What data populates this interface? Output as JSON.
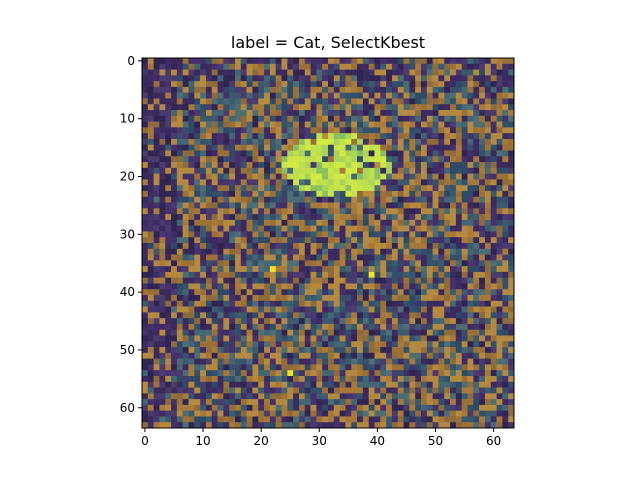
{
  "chart_data": {
    "type": "heatmap",
    "title": "label = Cat, SelectKbest",
    "xlabel": "",
    "ylabel": "",
    "grid_size": [
      64,
      64
    ],
    "xlim": [
      -0.5,
      63.5
    ],
    "ylim": [
      63.5,
      -0.5
    ],
    "xticks": [
      0,
      10,
      20,
      30,
      40,
      50,
      60
    ],
    "yticks": [
      0,
      10,
      20,
      30,
      40,
      50,
      60
    ],
    "xtick_labels": [
      "0",
      "10",
      "20",
      "30",
      "40",
      "50",
      "60"
    ],
    "ytick_labels": [
      "0",
      "10",
      "20",
      "30",
      "40",
      "50",
      "60"
    ],
    "grid": false,
    "legend": "none",
    "description_colors": {
      "background_dark": "#3d2a63",
      "mid_teal": "#3b5a6e",
      "selected_orange": "#a87a3a",
      "highlight_green": "#c8e64a",
      "bright_yellow": "#f6e21e"
    },
    "selected_region": {
      "rows": [
        12,
        25
      ],
      "cols": [
        20,
        45
      ]
    },
    "bright_pixels": [
      {
        "x": 22,
        "y": 36
      },
      {
        "x": 39,
        "y": 37
      },
      {
        "x": 25,
        "y": 54
      }
    ]
  }
}
